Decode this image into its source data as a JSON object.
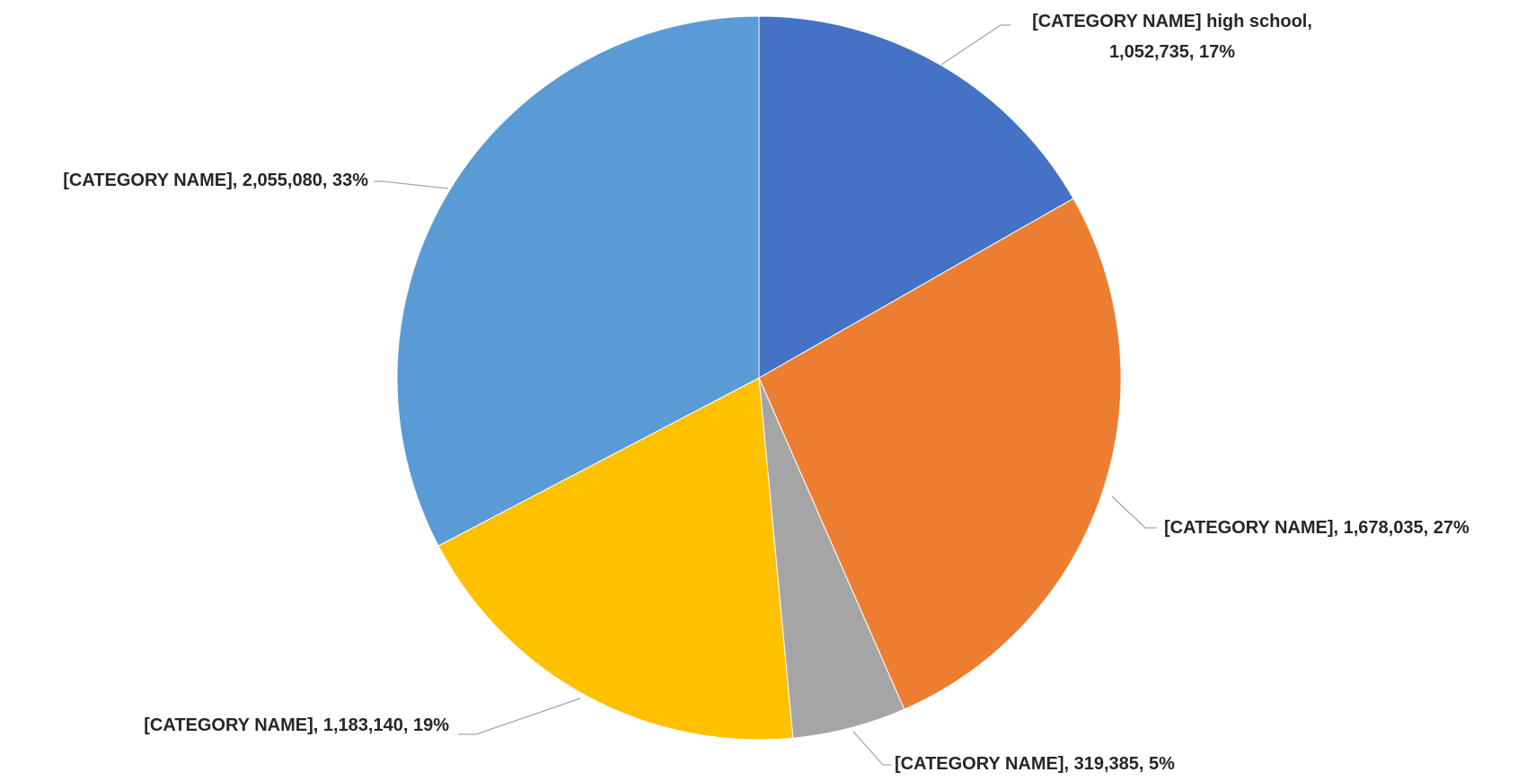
{
  "chart_data": {
    "type": "pie",
    "title": "",
    "start_angle": "12 o'clock",
    "direction": "clockwise",
    "slices": [
      {
        "label_lines": [
          "[CATEGORY NAME] high school,",
          "1,052,735, 17%"
        ],
        "value": 1052735,
        "percent": "17%",
        "color": "#4472c4"
      },
      {
        "label_lines": [
          "[CATEGORY NAME], 1,678,035, 27%"
        ],
        "value": 1678035,
        "percent": "27%",
        "color": "#ed7d31"
      },
      {
        "label_lines": [
          "[CATEGORY NAME], 319,385, 5%"
        ],
        "value": 319385,
        "percent": "5%",
        "color": "#a5a5a5"
      },
      {
        "label_lines": [
          "[CATEGORY NAME], 1,183,140, 19%"
        ],
        "value": 1183140,
        "percent": "19%",
        "color": "#ffc000"
      },
      {
        "label_lines": [
          "[CATEGORY NAME], 2,055,080, 33%"
        ],
        "value": 2055080,
        "percent": "33%",
        "color": "#5b9bd5"
      }
    ]
  }
}
